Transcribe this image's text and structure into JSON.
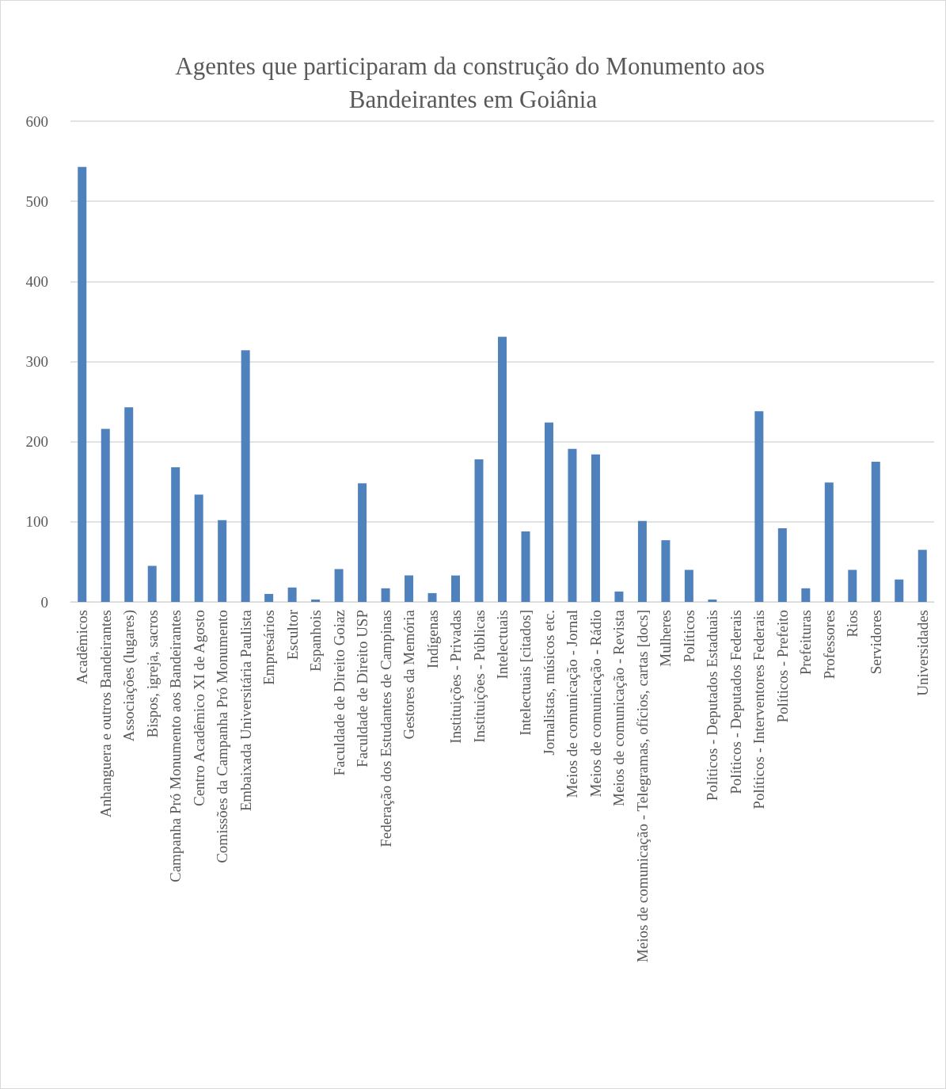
{
  "chart_data": {
    "type": "bar",
    "title": "Agentes que participaram da construção do Monumento aos Bandeirantes em Goiânia",
    "categories": [
      "Acadêmicos",
      "Anhanguera e outros Bandeirantes",
      "Associações (lugares)",
      "Bispos, igreja, sacros",
      "Campanha Pró Monumento aos Bandeirantes",
      "Centro Acadêmico XI de Agosto",
      "Comissões da Campanha Pró Monumento",
      "Embaixada Universitária Paulista",
      "Empresários",
      "Escultor",
      "Espanhois",
      "Faculdade de Direito Goiaz",
      "Faculdade de Direito USP",
      "Federação dos Estudantes de Campinas",
      "Gestores da Memória",
      "Indígenas",
      "Instituições - Privadas",
      "Instituições - Públicas",
      "Intelectuais",
      "Intelectuais [citados]",
      "Jornalistas, músicos etc.",
      "Meios de comunicação - Jornal",
      "Meios de comunicação - Rádio",
      "Meios de comunicação - Revista",
      "Meios de comunicação - Telegramas, ofícios, cartas [docs]",
      "Mulheres",
      "Políticos",
      "Políticos - Deputados Estaduais",
      "Políticos - Deputados Federais",
      "Políticos - Interventores Federais",
      "Políticos - Prefeito",
      "Prefeituras",
      "Professores",
      "Rios",
      "Servidores",
      null,
      "Universidades"
    ],
    "values": [
      543,
      216,
      243,
      45,
      168,
      134,
      102,
      314,
      10,
      18,
      3,
      41,
      148,
      17,
      33,
      11,
      33,
      178,
      331,
      88,
      224,
      191,
      184,
      13,
      101,
      77,
      40,
      3,
      0,
      238,
      92,
      17,
      149,
      40,
      175,
      28,
      65
    ],
    "color": "#4f81bd",
    "ylim": [
      0,
      600
    ],
    "yticks": [
      0,
      100,
      200,
      300,
      400,
      500,
      600
    ],
    "grid": true
  }
}
